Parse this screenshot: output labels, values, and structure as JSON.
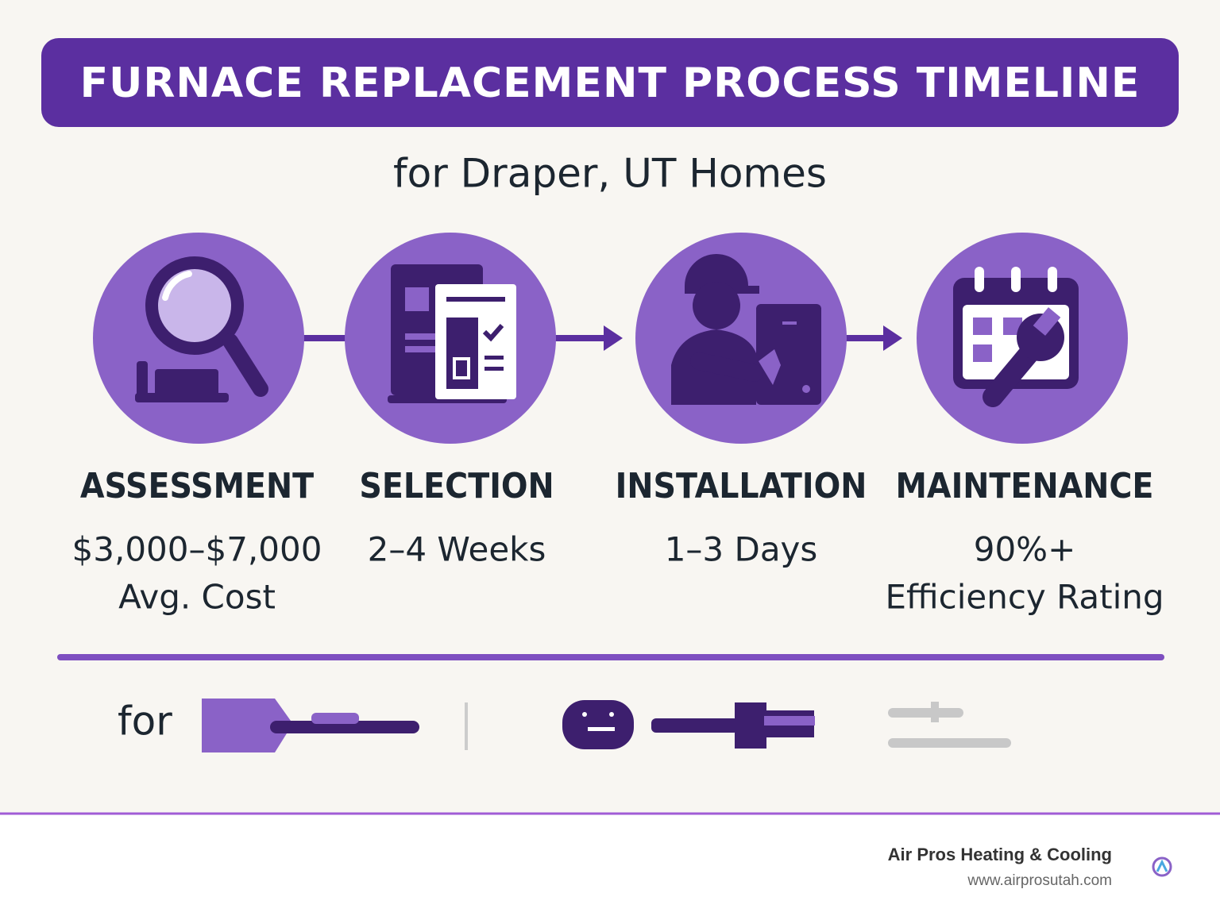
{
  "header": {
    "title": "FURNACE REPLACEMENT PROCESS TIMELINE",
    "subtitle": "for Draper, UT Homes"
  },
  "steps": [
    {
      "label": "ASSESSMENT",
      "details": [
        "$3,000–$7,000",
        "Avg. Cost"
      ]
    },
    {
      "label": "SELECTION",
      "details": [
        "2–4 Weeks"
      ]
    },
    {
      "label": "INSTALLATION",
      "details": [
        "1–3 Days"
      ]
    },
    {
      "label": "MAINTENANCE",
      "details": [
        "90%+",
        "Efficiency Rating"
      ]
    }
  ],
  "bottom": {
    "text": "for"
  },
  "footer": {
    "brand": "Air Pros Heating & Cooling",
    "url": "www.airprosutah.com"
  }
}
